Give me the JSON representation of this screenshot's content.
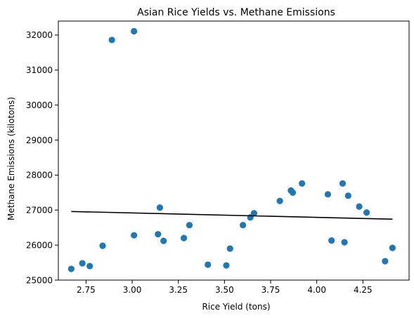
{
  "chart_data": {
    "type": "scatter",
    "title": "Asian Rice Yields vs. Methane Emissions",
    "xlabel": "Rice Yield (tons)",
    "ylabel": "Methane Emissions (kilotons)",
    "xlim": [
      2.6,
      4.5
    ],
    "ylim": [
      25000,
      32400
    ],
    "xticks": [
      2.75,
      3.0,
      3.25,
      3.5,
      3.75,
      4.0,
      4.25
    ],
    "xtick_labels": [
      "2.75",
      "3.00",
      "3.25",
      "3.50",
      "3.75",
      "4.00",
      "4.25"
    ],
    "yticks": [
      25000,
      26000,
      27000,
      28000,
      29000,
      30000,
      31000,
      32000
    ],
    "ytick_labels": [
      "25000",
      "26000",
      "27000",
      "28000",
      "29000",
      "30000",
      "31000",
      "32000"
    ],
    "grid": false,
    "point_color": "#1f77b4",
    "line_color": "#000000",
    "points": [
      {
        "x": 2.67,
        "y": 25320
      },
      {
        "x": 2.73,
        "y": 25480
      },
      {
        "x": 2.77,
        "y": 25400
      },
      {
        "x": 2.84,
        "y": 25980
      },
      {
        "x": 2.89,
        "y": 31860
      },
      {
        "x": 3.01,
        "y": 32110
      },
      {
        "x": 3.01,
        "y": 26280
      },
      {
        "x": 3.14,
        "y": 26310
      },
      {
        "x": 3.15,
        "y": 27070
      },
      {
        "x": 3.17,
        "y": 26120
      },
      {
        "x": 3.28,
        "y": 26200
      },
      {
        "x": 3.31,
        "y": 26570
      },
      {
        "x": 3.41,
        "y": 25440
      },
      {
        "x": 3.51,
        "y": 25420
      },
      {
        "x": 3.53,
        "y": 25900
      },
      {
        "x": 3.6,
        "y": 26570
      },
      {
        "x": 3.64,
        "y": 26790
      },
      {
        "x": 3.66,
        "y": 26910
      },
      {
        "x": 3.8,
        "y": 27260
      },
      {
        "x": 3.86,
        "y": 27560
      },
      {
        "x": 3.87,
        "y": 27500
      },
      {
        "x": 3.92,
        "y": 27760
      },
      {
        "x": 4.06,
        "y": 27450
      },
      {
        "x": 4.08,
        "y": 26130
      },
      {
        "x": 4.14,
        "y": 27760
      },
      {
        "x": 4.15,
        "y": 26080
      },
      {
        "x": 4.17,
        "y": 27410
      },
      {
        "x": 4.23,
        "y": 27100
      },
      {
        "x": 4.27,
        "y": 26930
      },
      {
        "x": 4.37,
        "y": 25540
      },
      {
        "x": 4.41,
        "y": 25920
      }
    ],
    "trend_line": [
      {
        "x": 2.67,
        "y": 26960
      },
      {
        "x": 4.41,
        "y": 26740
      }
    ]
  }
}
